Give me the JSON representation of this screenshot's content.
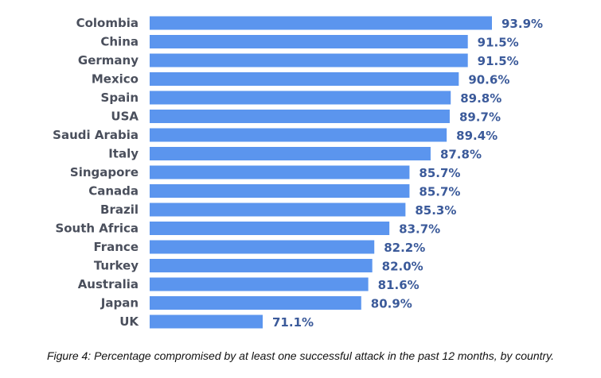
{
  "chart_data": {
    "type": "bar",
    "orientation": "horizontal",
    "categories": [
      "Colombia",
      "China",
      "Germany",
      "Mexico",
      "Spain",
      "USA",
      "Saudi Arabia",
      "Italy",
      "Singapore",
      "Canada",
      "Brazil",
      "South Africa",
      "France",
      "Turkey",
      "Australia",
      "Japan",
      "UK"
    ],
    "values": [
      93.9,
      91.5,
      91.5,
      90.6,
      89.8,
      89.7,
      89.4,
      87.8,
      85.7,
      85.7,
      85.3,
      83.7,
      82.2,
      82.0,
      81.6,
      80.9,
      71.1
    ],
    "value_labels": [
      "93.9%",
      "91.5%",
      "91.5%",
      "90.6%",
      "89.8%",
      "89.7%",
      "89.4%",
      "87.8%",
      "85.7%",
      "85.7%",
      "85.3%",
      "83.7%",
      "82.2%",
      "82.0%",
      "81.6%",
      "80.9%",
      "71.1%"
    ],
    "title": "",
    "xlabel": "",
    "ylabel": "",
    "grid": false,
    "legend": "none",
    "caption": "Figure 4: Percentage compromised by at least one successful attack in the past 12 months, by country.",
    "colors": {
      "bar": "#5b95ee",
      "value_label": "#3b5a9a",
      "category_label": "#4a4f5c"
    }
  }
}
